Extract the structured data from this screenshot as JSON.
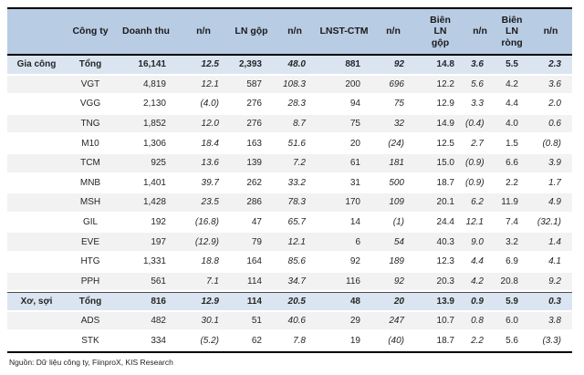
{
  "colors": {
    "header_bg": "#b8cce4",
    "total_bg": "#dbe5f1",
    "stripe_bg": "#f2f2f2",
    "border": "#000000"
  },
  "table": {
    "columns": [
      {
        "key": "group",
        "label": ""
      },
      {
        "key": "company",
        "label": "Công ty"
      },
      {
        "key": "doanh-thu",
        "label": "Doanh thu"
      },
      {
        "key": "nn-doanh-thu",
        "label": "n/n"
      },
      {
        "key": "ln-gop",
        "label": "LN gộp"
      },
      {
        "key": "nn-ln-gop",
        "label": "n/n"
      },
      {
        "key": "lnst-ctm",
        "label": "LNST-CTM"
      },
      {
        "key": "nn-lnst-ctm",
        "label": "n/n"
      },
      {
        "key": "bien-ln-gop",
        "label": "Biên\nLN\ngộp"
      },
      {
        "key": "nn-bien-ln-gop",
        "label": "n/n"
      },
      {
        "key": "bien-ln-rong",
        "label": "Biên\nLN\nròng"
      },
      {
        "key": "nn-bien-ln-rong",
        "label": "n/n"
      }
    ],
    "rows": [
      {
        "group": "Gia công",
        "company": "Tổng",
        "type": "total",
        "values": [
          "16,141",
          "12.5",
          "2,393",
          "48.0",
          "881",
          "92",
          "14.8",
          "3.6",
          "5.5",
          "2.3"
        ]
      },
      {
        "group": "",
        "company": "VGT",
        "type": "data",
        "values": [
          "4,819",
          "12.1",
          "587",
          "108.3",
          "200",
          "696",
          "12.2",
          "5.6",
          "4.2",
          "3.6"
        ]
      },
      {
        "group": "",
        "company": "VGG",
        "type": "data",
        "values": [
          "2,130",
          "(4.0)",
          "276",
          "28.3",
          "94",
          "75",
          "12.9",
          "3.3",
          "4.4",
          "2.0"
        ]
      },
      {
        "group": "",
        "company": "TNG",
        "type": "data",
        "values": [
          "1,852",
          "12.0",
          "276",
          "8.7",
          "75",
          "32",
          "14.9",
          "(0.4)",
          "4.0",
          "0.6"
        ]
      },
      {
        "group": "",
        "company": "M10",
        "type": "data",
        "values": [
          "1,306",
          "18.4",
          "163",
          "51.6",
          "20",
          "(24)",
          "12.5",
          "2.7",
          "1.5",
          "(0.8)"
        ]
      },
      {
        "group": "",
        "company": "TCM",
        "type": "data",
        "values": [
          "925",
          "13.6",
          "139",
          "7.2",
          "61",
          "181",
          "15.0",
          "(0.9)",
          "6.6",
          "3.9"
        ]
      },
      {
        "group": "",
        "company": "MNB",
        "type": "data",
        "values": [
          "1,401",
          "39.7",
          "262",
          "33.2",
          "31",
          "500",
          "18.7",
          "(0.9)",
          "2.2",
          "1.7"
        ]
      },
      {
        "group": "",
        "company": "MSH",
        "type": "data",
        "values": [
          "1,428",
          "23.5",
          "286",
          "78.3",
          "170",
          "109",
          "20.1",
          "6.2",
          "11.9",
          "4.9"
        ]
      },
      {
        "group": "",
        "company": "GIL",
        "type": "data",
        "values": [
          "192",
          "(16.8)",
          "47",
          "65.7",
          "14",
          "(1)",
          "24.4",
          "12.1",
          "7.4",
          "(32.1)"
        ]
      },
      {
        "group": "",
        "company": "EVE",
        "type": "data",
        "values": [
          "197",
          "(12.9)",
          "79",
          "12.1",
          "6",
          "54",
          "40.3",
          "9.0",
          "3.2",
          "1.4"
        ]
      },
      {
        "group": "",
        "company": "HTG",
        "type": "data",
        "values": [
          "1,331",
          "18.8",
          "164",
          "85.6",
          "92",
          "189",
          "12.3",
          "4.4",
          "6.9",
          "4.1"
        ]
      },
      {
        "group": "",
        "company": "PPH",
        "type": "data",
        "values": [
          "561",
          "7.1",
          "114",
          "34.7",
          "116",
          "92",
          "20.3",
          "4.2",
          "20.8",
          "9.2"
        ]
      },
      {
        "group": "Xơ, sợi",
        "company": "Tổng",
        "type": "total",
        "values": [
          "816",
          "12.9",
          "114",
          "20.5",
          "48",
          "20",
          "13.9",
          "0.9",
          "5.9",
          "0.3"
        ]
      },
      {
        "group": "",
        "company": "ADS",
        "type": "data",
        "values": [
          "482",
          "30.1",
          "51",
          "40.6",
          "29",
          "247",
          "10.7",
          "0.8",
          "6.0",
          "3.8"
        ]
      },
      {
        "group": "",
        "company": "STK",
        "type": "data",
        "values": [
          "334",
          "(5.2)",
          "62",
          "7.8",
          "19",
          "(40)",
          "18.7",
          "2.2",
          "5.6",
          "(3.3)"
        ]
      }
    ],
    "source": "Nguồn: Dữ liệu công ty, FiinproX, KIS Research"
  }
}
